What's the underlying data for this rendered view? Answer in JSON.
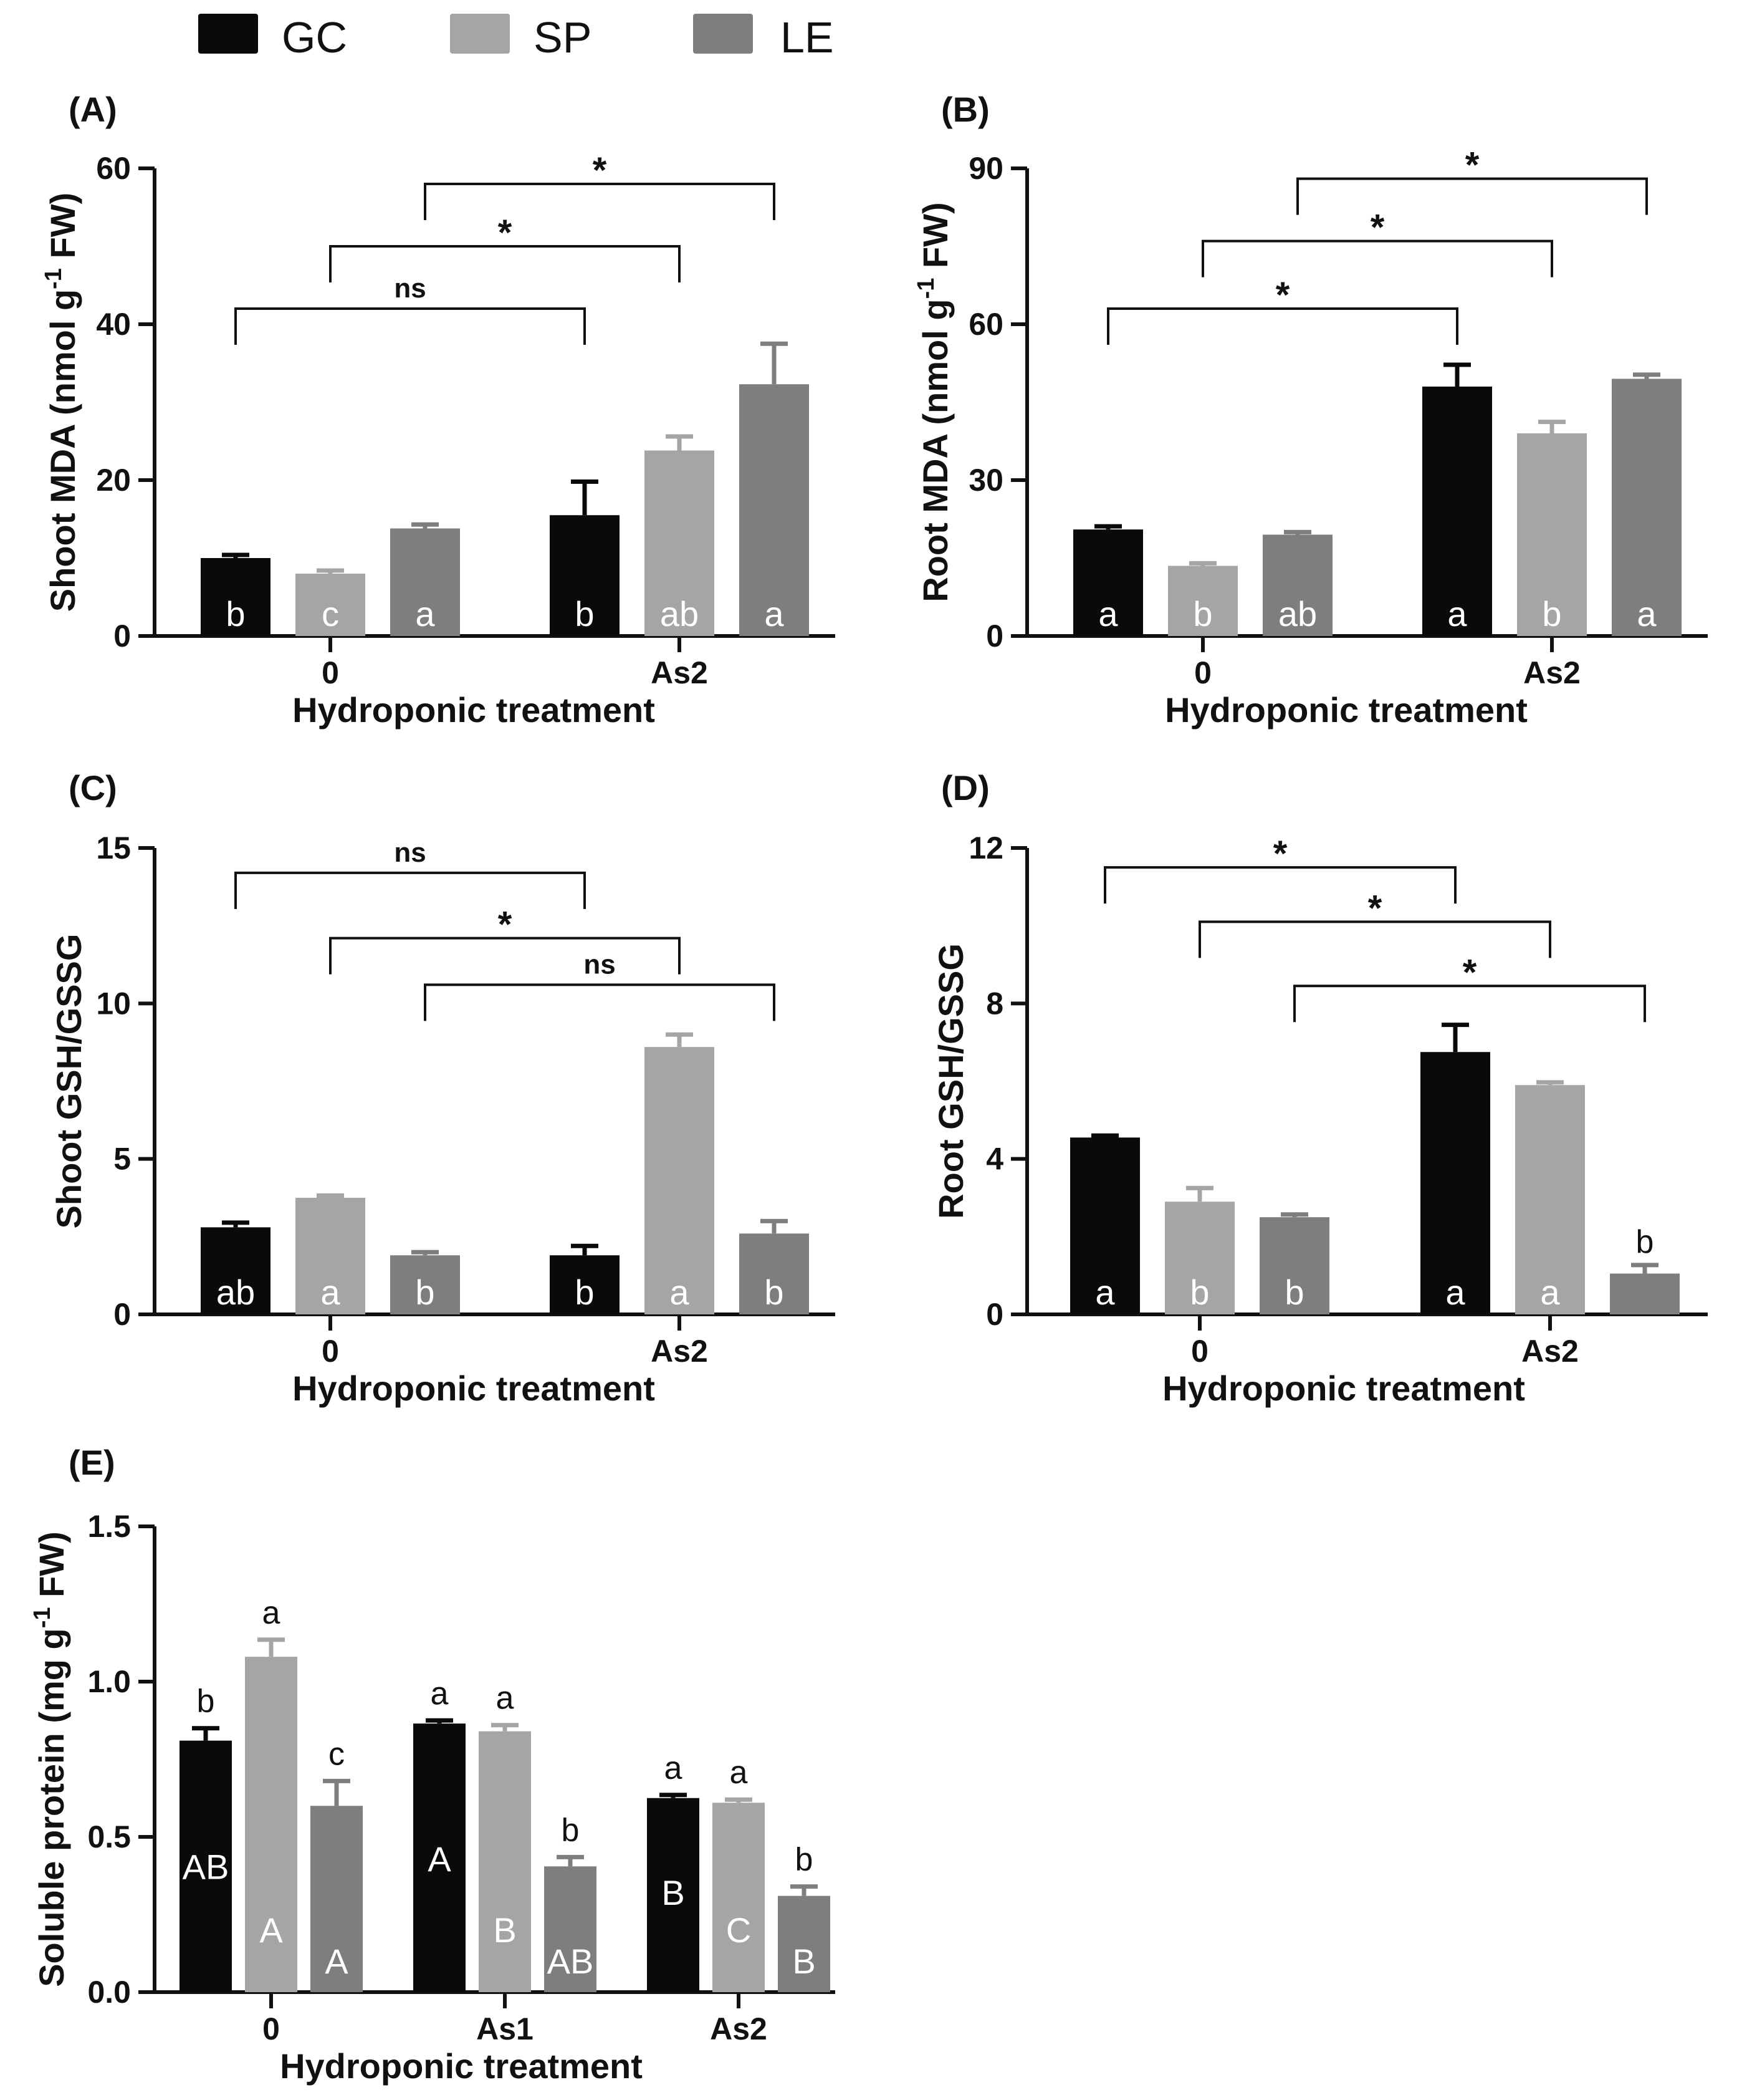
{
  "legend": {
    "items": [
      {
        "name": "GC",
        "color": "#0a0a0a"
      },
      {
        "name": "SP",
        "color": "#a5a5a7"
      },
      {
        "name": "LE",
        "color": "#7e7e80"
      }
    ]
  },
  "chart_data": [
    {
      "panel": "(A)",
      "type": "bar",
      "ylabel": "Shoot MDA (nmol g",
      "ylabel_sup": "-1",
      "ylabel_tail": " FW)",
      "xlabel": "Hydroponic treatment",
      "ylim": [
        0,
        60
      ],
      "yticks": [
        "0",
        "20",
        "40",
        "60"
      ],
      "categories": [
        "0",
        "As2"
      ],
      "series": [
        {
          "name": "GC",
          "values": [
            10,
            15.5
          ],
          "errors": [
            0.4,
            4.3
          ],
          "labels": [
            "b",
            "b"
          ]
        },
        {
          "name": "SP",
          "values": [
            8,
            23.8
          ],
          "errors": [
            0.4,
            1.8
          ],
          "labels": [
            "c",
            "ab"
          ]
        },
        {
          "name": "LE",
          "values": [
            13.8,
            32.3
          ],
          "errors": [
            0.5,
            5.2
          ],
          "labels": [
            "a",
            "a"
          ]
        }
      ],
      "comparisons": [
        {
          "series": 0,
          "label": "ns",
          "y": 42
        },
        {
          "series": 1,
          "label": "*",
          "y": 50
        },
        {
          "series": 2,
          "label": "*",
          "y": 58
        }
      ]
    },
    {
      "panel": "(B)",
      "type": "bar",
      "ylabel": "Root MDA (nmol g",
      "ylabel_sup": "-1",
      "ylabel_tail": " FW)",
      "xlabel": "Hydroponic treatment",
      "ylim": [
        0,
        90
      ],
      "yticks": [
        "0",
        "30",
        "60",
        "90"
      ],
      "categories": [
        "0",
        "As2"
      ],
      "series": [
        {
          "name": "GC",
          "values": [
            20.5,
            48
          ],
          "errors": [
            0.6,
            4.2
          ],
          "labels": [
            "a",
            "a"
          ]
        },
        {
          "name": "SP",
          "values": [
            13.5,
            39
          ],
          "errors": [
            0.5,
            2.2
          ],
          "labels": [
            "b",
            "b"
          ]
        },
        {
          "name": "LE",
          "values": [
            19.5,
            49.5
          ],
          "errors": [
            0.5,
            0.8
          ],
          "labels": [
            "ab",
            "a"
          ]
        }
      ],
      "comparisons": [
        {
          "series": 0,
          "label": "*",
          "y": 63
        },
        {
          "series": 1,
          "label": "*",
          "y": 76
        },
        {
          "series": 2,
          "label": "*",
          "y": 88
        }
      ]
    },
    {
      "panel": "(C)",
      "type": "bar",
      "ylabel": "Shoot GSH/GSSG",
      "ylabel_sup": "",
      "ylabel_tail": "",
      "xlabel": "Hydroponic treatment",
      "ylim": [
        0,
        15
      ],
      "yticks": [
        "0",
        "5",
        "10",
        "15"
      ],
      "categories": [
        "0",
        "As2"
      ],
      "series": [
        {
          "name": "GC",
          "values": [
            2.8,
            1.9
          ],
          "errors": [
            0.15,
            0.3
          ],
          "labels": [
            "ab",
            "b"
          ]
        },
        {
          "name": "SP",
          "values": [
            3.75,
            8.6
          ],
          "errors": [
            0.07,
            0.4
          ],
          "labels": [
            "a",
            "a"
          ]
        },
        {
          "name": "LE",
          "values": [
            1.9,
            2.6
          ],
          "errors": [
            0.1,
            0.4
          ],
          "labels": [
            "b",
            "b"
          ]
        }
      ],
      "comparisons": [
        {
          "series": 0,
          "label": "ns",
          "y": 14.2
        },
        {
          "series": 1,
          "label": "*",
          "y": 12.1
        },
        {
          "series": 2,
          "label": "ns",
          "y": 10.6
        }
      ]
    },
    {
      "panel": "(D)",
      "type": "bar",
      "ylabel": "Root GSH/GSSG",
      "ylabel_sup": "",
      "ylabel_tail": "",
      "xlabel": "Hydroponic treatment",
      "ylim": [
        0,
        12
      ],
      "yticks": [
        "0",
        "4",
        "8",
        "12"
      ],
      "categories": [
        "0",
        "As2"
      ],
      "series": [
        {
          "name": "GC",
          "values": [
            4.55,
            6.75
          ],
          "errors": [
            0.05,
            0.7
          ],
          "labels": [
            "a",
            "a"
          ]
        },
        {
          "name": "SP",
          "values": [
            2.9,
            5.9
          ],
          "errors": [
            0.35,
            0.07
          ],
          "labels": [
            "b",
            "a"
          ]
        },
        {
          "name": "LE",
          "values": [
            2.5,
            1.05
          ],
          "errors": [
            0.07,
            0.22
          ],
          "labels": [
            "b",
            "b"
          ]
        }
      ],
      "comparisons": [
        {
          "series": 0,
          "label": "*",
          "y": 11.5
        },
        {
          "series": 1,
          "label": "*",
          "y": 10.1
        },
        {
          "series": 2,
          "label": "*",
          "y": 8.45
        }
      ]
    },
    {
      "panel": "(E)",
      "type": "bar",
      "ylabel": "Soluble protein (mg g",
      "ylabel_sup": "-1",
      "ylabel_tail": " FW)",
      "xlabel": "Hydroponic treatment",
      "ylim": [
        0,
        1.5
      ],
      "yticks": [
        "0.0",
        "0.5",
        "1.0",
        "1.5"
      ],
      "categories": [
        "0",
        "As1",
        "As2"
      ],
      "series": [
        {
          "name": "GC",
          "values": [
            0.81,
            0.865,
            0.625
          ],
          "errors": [
            0.04,
            0.01,
            0.01
          ],
          "labels": [
            "AB",
            "A",
            "B"
          ],
          "top_labels": [
            "b",
            "a",
            "a"
          ]
        },
        {
          "name": "SP",
          "values": [
            1.08,
            0.84,
            0.61
          ],
          "errors": [
            0.055,
            0.02,
            0.01
          ],
          "labels": [
            "A",
            "B",
            "C"
          ],
          "top_labels": [
            "a",
            "a",
            "a"
          ]
        },
        {
          "name": "LE",
          "values": [
            0.6,
            0.405,
            0.31
          ],
          "errors": [
            0.08,
            0.03,
            0.03
          ],
          "labels": [
            "A",
            "AB",
            "B"
          ],
          "top_labels": [
            "c",
            "b",
            "b"
          ]
        }
      ],
      "comparisons": []
    }
  ]
}
